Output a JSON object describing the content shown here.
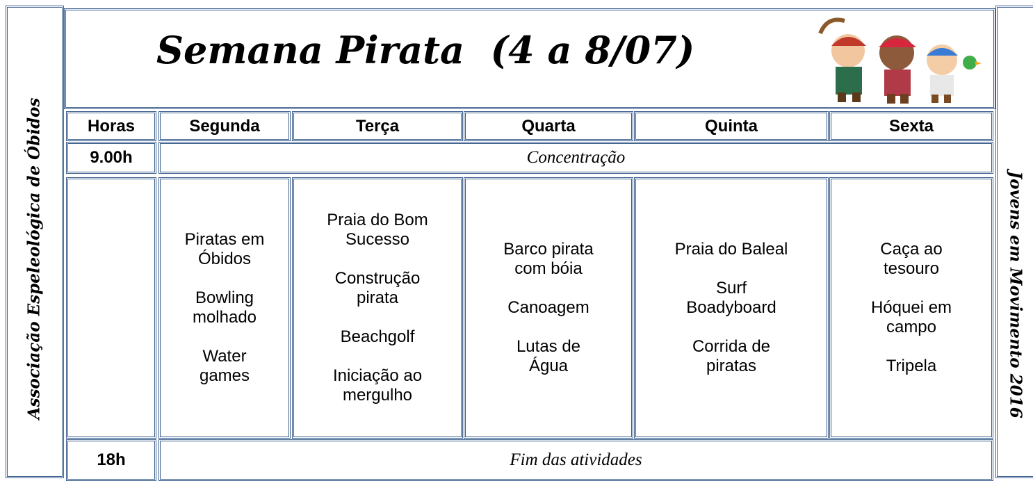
{
  "side_left": "Associação Espeleológica de Óbidos",
  "side_right": "Jovens em Movimento 2016",
  "title": "Semana Pirata  (4 a 8/07)",
  "table": {
    "header": [
      "Horas",
      "Segunda",
      "Terça",
      "Quarta",
      "Quinta",
      "Sexta"
    ],
    "start": {
      "time": "9.00h",
      "text": "Concentração"
    },
    "activities": [
      [
        "Piratas em Óbidos",
        "Bowling molhado",
        "Water games"
      ],
      [
        "Praia do Bom Sucesso",
        "Construção pirata",
        "Beachgolf",
        "Iniciação ao mergulho"
      ],
      [
        "Barco pirata com bóia",
        "Canoagem",
        "Lutas de Água"
      ],
      [
        "Praia do Baleal",
        "Surf Boadyboard",
        "Corrida de piratas"
      ],
      [
        "Caça ao tesouro",
        "Hóquei em campo",
        "Tripela"
      ]
    ],
    "end": {
      "time": "18h",
      "text": "Fim das atividades"
    }
  }
}
